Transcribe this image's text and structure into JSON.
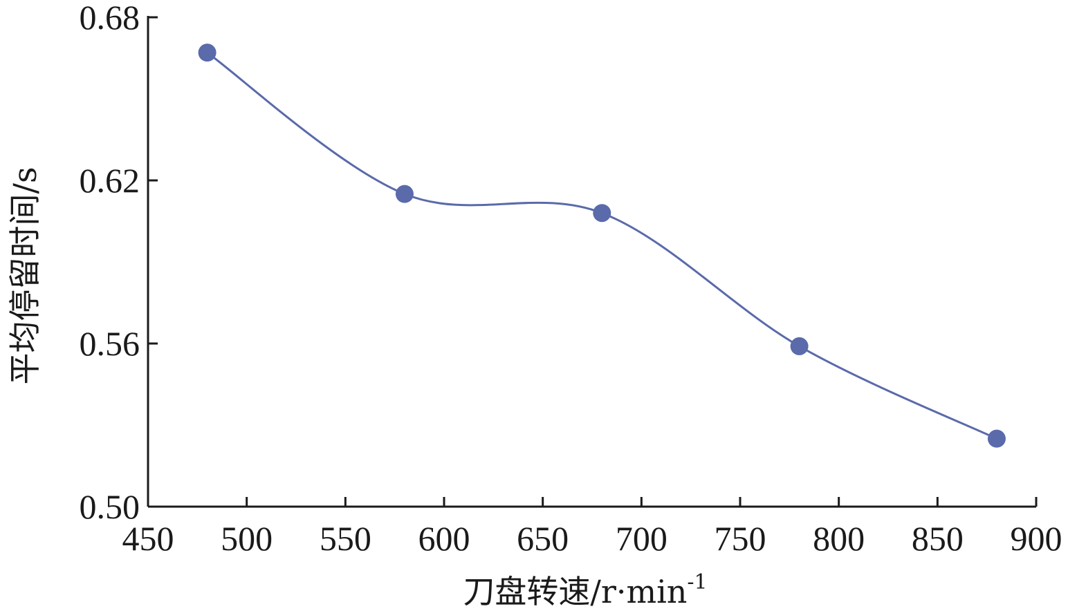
{
  "chart_data": {
    "type": "line",
    "title": "",
    "xlabel": "刀盘转速/r·min",
    "xlabel_superscript": "-1",
    "ylabel": "平均停留时间/s",
    "xlim": [
      450,
      900
    ],
    "ylim": [
      0.5,
      0.68
    ],
    "x_ticks": [
      450,
      500,
      550,
      600,
      650,
      700,
      750,
      800,
      850,
      900
    ],
    "y_ticks": [
      0.5,
      0.56,
      0.62,
      0.68
    ],
    "x_tick_labels": [
      "450",
      "500",
      "550",
      "600",
      "650",
      "700",
      "750",
      "800",
      "850",
      "900"
    ],
    "y_tick_labels": [
      "0.50",
      "0.56",
      "0.62",
      "0.68"
    ],
    "smooth": true,
    "grid": false,
    "legend": "none",
    "series": [
      {
        "color": "#5a6aaa",
        "x": [
          480,
          580,
          680,
          780,
          880
        ],
        "y": [
          0.667,
          0.615,
          0.608,
          0.559,
          0.525
        ]
      }
    ]
  }
}
